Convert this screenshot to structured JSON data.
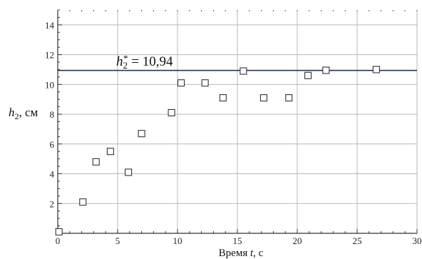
{
  "chart_data": {
    "type": "scatter",
    "xlabel_prefix": "Время ",
    "xlabel_var": "t",
    "xlabel_suffix": ", с",
    "ylabel_var": "h",
    "ylabel_sub": "2",
    "ylabel_suffix": ", см",
    "xlim": [
      0,
      30
    ],
    "ylim": [
      0,
      15
    ],
    "x_ticks": [
      0,
      5,
      10,
      15,
      20,
      25,
      30
    ],
    "y_ticks": [
      2,
      4,
      6,
      8,
      10,
      12,
      14
    ],
    "grid": true,
    "points": [
      {
        "x": 0.1,
        "y": 0.1
      },
      {
        "x": 2.1,
        "y": 2.1
      },
      {
        "x": 3.2,
        "y": 4.8
      },
      {
        "x": 4.4,
        "y": 5.5
      },
      {
        "x": 5.9,
        "y": 4.1
      },
      {
        "x": 7.0,
        "y": 6.7
      },
      {
        "x": 9.5,
        "y": 8.1
      },
      {
        "x": 10.3,
        "y": 10.1
      },
      {
        "x": 12.3,
        "y": 10.1
      },
      {
        "x": 13.8,
        "y": 9.1
      },
      {
        "x": 15.5,
        "y": 10.9
      },
      {
        "x": 17.2,
        "y": 9.1
      },
      {
        "x": 19.3,
        "y": 9.1
      },
      {
        "x": 20.9,
        "y": 10.6
      },
      {
        "x": 22.4,
        "y": 10.95
      },
      {
        "x": 26.6,
        "y": 11.0
      }
    ],
    "reference_line": {
      "value": 10.94,
      "label_var": "h",
      "label_sub": "2",
      "label_sup": "*",
      "label_rest": " = 10,94",
      "color": "#1f3a5a"
    },
    "grid_color": "#b8b8b8",
    "marker_color": "#333333"
  }
}
